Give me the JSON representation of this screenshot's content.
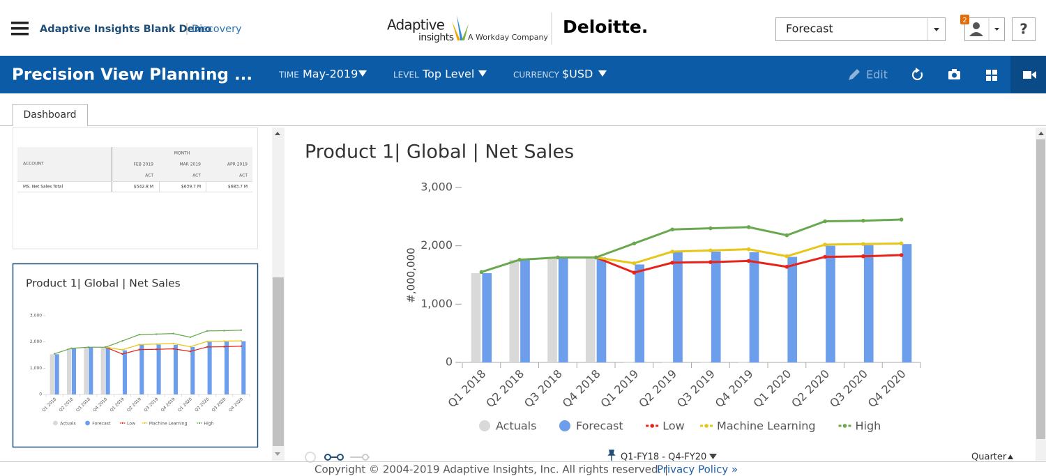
{
  "header": {
    "app_name": "Adaptive Insights Blank Demo",
    "section": "Discovery",
    "logo_top": "Adaptive",
    "logo_bottom": "insights",
    "logo_tagline": "A Workday Company",
    "partner": "Deloitte.",
    "version_select": "Forecast",
    "notification_count": "2",
    "help": "?"
  },
  "toolbar": {
    "title": "Precision View Planning ...",
    "time_label": "TIME",
    "time_value": "May-2019",
    "level_label": "LEVEL",
    "level_value": "Top Level",
    "currency_label": "CURRENCY",
    "currency_value": "$USD",
    "edit": "Edit"
  },
  "tabs": [
    "Dashboard"
  ],
  "thumbnail_table": {
    "group_header": "MONTH",
    "columns": [
      "ACCOUNT",
      "FEB 2019",
      "MAR 2019",
      "APR 2019"
    ],
    "subheaders": [
      "ACT",
      "ACT",
      "ACT"
    ],
    "rows": [
      [
        "MS. Net Sales Total",
        "$542.8 M",
        "$639.7 M",
        "$683.7 M"
      ]
    ]
  },
  "chart_data": {
    "type": "combo",
    "title": "Product 1| Global | Net Sales",
    "y_label": "#,000,000",
    "categories": [
      "Q1 2018",
      "Q2 2018",
      "Q3 2018",
      "Q4 2018",
      "Q1 2019",
      "Q2 2019",
      "Q3 2019",
      "Q4 2019",
      "Q1 2020",
      "Q2 2020",
      "Q3 2020",
      "Q4 2020"
    ],
    "series": [
      {
        "name": "Actuals",
        "mark": "bar",
        "color": "#d9d9d9",
        "values": [
          1530,
          1760,
          1800,
          1800,
          0,
          0,
          0,
          0,
          null,
          null,
          null,
          null
        ]
      },
      {
        "name": "Forecast",
        "mark": "bar",
        "color": "#6d9eeb",
        "values": [
          1530,
          1760,
          1800,
          1800,
          1680,
          1890,
          1900,
          1890,
          1810,
          2000,
          2010,
          2030
        ]
      },
      {
        "name": "Low",
        "mark": "line",
        "color": "#e8231b",
        "values": [
          null,
          null,
          null,
          1800,
          1540,
          1710,
          1720,
          1740,
          1640,
          1810,
          1820,
          1840
        ]
      },
      {
        "name": "Machine Learning",
        "mark": "line",
        "color": "#e6c619",
        "values": [
          null,
          null,
          null,
          1800,
          1700,
          1900,
          1920,
          1940,
          1820,
          2020,
          2030,
          2040
        ]
      },
      {
        "name": "High",
        "mark": "line",
        "color": "#6aa84f",
        "values": [
          1550,
          1760,
          1800,
          1800,
          2040,
          2280,
          2300,
          2320,
          2180,
          2420,
          2430,
          2450
        ]
      }
    ],
    "ylim": [
      0,
      3000
    ],
    "yticks": [
      0,
      {
        "value": 1000,
        "label": "1,000"
      },
      {
        "value": 2000,
        "label": "2,000"
      },
      {
        "value": 3000,
        "label": "3,000"
      }
    ],
    "grid": false
  },
  "footer": {
    "range": "Q1-FY18 - Q4-FY20",
    "period": "Quarter",
    "copyright": "Copyright © 2004-2019 Adaptive Insights, Inc. All rights reserved. |",
    "privacy": "Privacy Policy »"
  }
}
